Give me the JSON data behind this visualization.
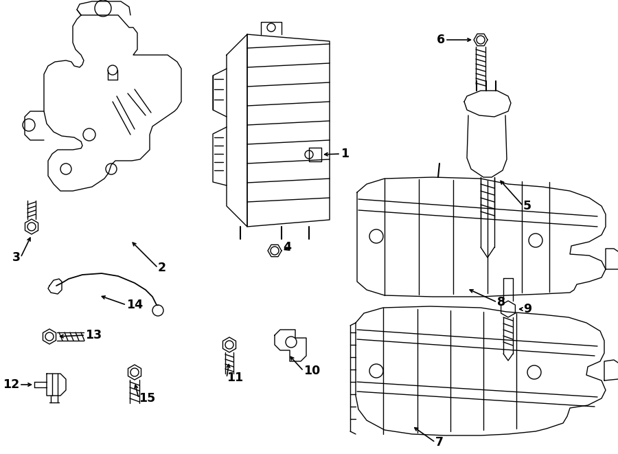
{
  "bg_color": "#ffffff",
  "line_color": "#000000",
  "figsize": [
    9.0,
    6.61
  ],
  "dpi": 100,
  "lw": 1.0
}
